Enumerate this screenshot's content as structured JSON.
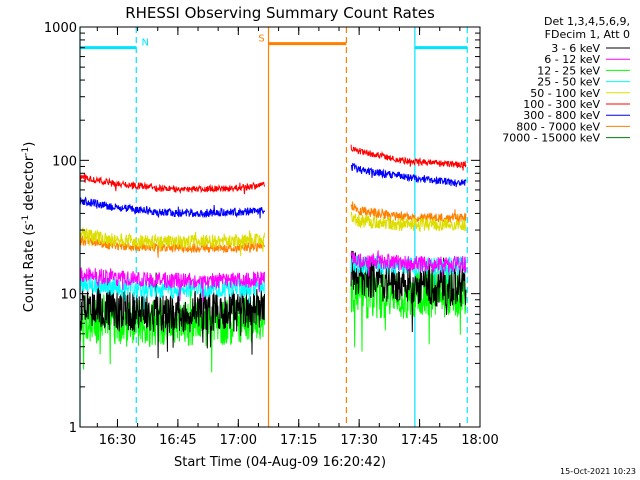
{
  "chart_data": {
    "type": "line",
    "title": "RHESSI Observing Summary Count Rates",
    "xlabel": "Start Time (04-Aug-09 16:20:42)",
    "ylabel_main": "Count Rate (s",
    "ylabel_sup1": "-1",
    "ylabel_mid": " detector",
    "ylabel_sup2": "-1",
    "ylabel_end": ")",
    "yscale": "log",
    "ylim": [
      1,
      1000
    ],
    "xlim": [
      "16:20:42",
      "18:00:00"
    ],
    "x_ticks": [
      "16:30",
      "16:45",
      "17:00",
      "17:15",
      "17:30",
      "17:45",
      "18:00"
    ],
    "y_ticks": [
      "1",
      "10",
      "100",
      "1000"
    ],
    "legend_header": [
      "Det 1,3,4,5,6,9,",
      "FDecim 1, Att 0"
    ],
    "timestamp": "15-Oct-2021 10:23",
    "flag_bars": [
      {
        "label": "N",
        "start": "16:20:42",
        "end": "16:34:40",
        "value": 700,
        "color": "#00e5ff"
      },
      {
        "label": "S",
        "start": "17:07:30",
        "end": "17:26:50",
        "value": 750,
        "color": "#ff8000"
      },
      {
        "label": "",
        "start": "17:43:50",
        "end": "17:56:50",
        "value": 700,
        "color": "#00e5ff"
      }
    ],
    "boundaries": [
      {
        "time": "16:20:42",
        "style": "solid",
        "color": "#00e5ff"
      },
      {
        "time": "16:34:40",
        "style": "dashed",
        "color": "#00e5ff"
      },
      {
        "time": "17:07:30",
        "style": "solid",
        "color": "#ff8000"
      },
      {
        "time": "17:26:50",
        "style": "dashed",
        "color": "#ff8000"
      },
      {
        "time": "17:43:50",
        "style": "solid",
        "color": "#00e5ff"
      },
      {
        "time": "17:56:50",
        "style": "dashed",
        "color": "#00e5ff"
      }
    ],
    "segments": [
      {
        "start": "16:20:42",
        "end": "17:06:30"
      },
      {
        "start": "17:28:00",
        "end": "17:56:30"
      }
    ],
    "series": [
      {
        "name": "3 - 6 keV",
        "color": "#000000",
        "noise": 0.16,
        "seg1": {
          "x": [
            "16:20:42",
            "16:30",
            "16:45",
            "17:00",
            "17:06:30"
          ],
          "y": [
            8.5,
            7.5,
            7.2,
            7.5,
            7.8
          ]
        },
        "seg2": {
          "x": [
            "17:28:00",
            "17:30",
            "17:40",
            "17:50",
            "17:56:30"
          ],
          "y": [
            15,
            13.5,
            12,
            11.5,
            11.5
          ]
        }
      },
      {
        "name": "6 - 12 keV",
        "color": "#ff00ff",
        "noise": 0.06,
        "seg1": {
          "x": [
            "16:20:42",
            "16:30",
            "16:45",
            "17:00",
            "17:06:30"
          ],
          "y": [
            14,
            13,
            12.5,
            12.5,
            13
          ]
        },
        "seg2": {
          "x": [
            "17:28:00",
            "17:30",
            "17:40",
            "17:50",
            "17:56:30"
          ],
          "y": [
            19,
            18,
            17,
            16.5,
            16.5
          ]
        }
      },
      {
        "name": "12 - 25 keV",
        "color": "#00ff00",
        "noise": 0.18,
        "seg1": {
          "x": [
            "16:20:42",
            "16:30",
            "16:45",
            "17:00",
            "17:06:30"
          ],
          "y": [
            6.5,
            6.2,
            6,
            6.2,
            6.5
          ]
        },
        "seg2": {
          "x": [
            "17:28:00",
            "17:30",
            "17:40",
            "17:50",
            "17:56:30"
          ],
          "y": [
            10,
            9.8,
            9.8,
            10,
            10.2
          ]
        }
      },
      {
        "name": "25 - 50 keV",
        "color": "#00ffff",
        "noise": 0.07,
        "seg1": {
          "x": [
            "16:20:42",
            "16:30",
            "16:45",
            "17:00",
            "17:06:30"
          ],
          "y": [
            12,
            11.2,
            10.8,
            11,
            11.5
          ]
        },
        "seg2": {
          "x": [
            "17:28:00",
            "17:30",
            "17:40",
            "17:50",
            "17:56:30"
          ],
          "y": [
            17,
            16.5,
            16,
            16,
            16.5
          ]
        }
      },
      {
        "name": "50 - 100 keV",
        "color": "#dddd00",
        "noise": 0.05,
        "seg1": {
          "x": [
            "16:20:42",
            "16:30",
            "16:45",
            "17:00",
            "17:06:30"
          ],
          "y": [
            28,
            25,
            24.5,
            25,
            26
          ]
        },
        "seg2": {
          "x": [
            "17:28:00",
            "17:30",
            "17:40",
            "17:50",
            "17:56:30"
          ],
          "y": [
            38,
            35,
            33,
            33,
            33
          ]
        }
      },
      {
        "name": "100 - 300 keV",
        "color": "#ff0000",
        "noise": 0.025,
        "seg1": {
          "x": [
            "16:20:42",
            "16:30",
            "16:45",
            "17:00",
            "17:06:30"
          ],
          "y": [
            75,
            67,
            60,
            62,
            66
          ]
        },
        "seg2": {
          "x": [
            "17:28:00",
            "17:30",
            "17:40",
            "17:50",
            "17:56:30"
          ],
          "y": [
            125,
            118,
            100,
            95,
            92
          ]
        }
      },
      {
        "name": "300 - 800 keV",
        "color": "#0000ff",
        "noise": 0.03,
        "seg1": {
          "x": [
            "16:20:42",
            "16:30",
            "16:45",
            "17:00",
            "17:06:30"
          ],
          "y": [
            50,
            44,
            40,
            41,
            42
          ]
        },
        "seg2": {
          "x": [
            "17:28:00",
            "17:30",
            "17:40",
            "17:50",
            "17:56:30"
          ],
          "y": [
            90,
            85,
            76,
            70,
            67
          ]
        }
      },
      {
        "name": "800 - 7000 keV",
        "color": "#ff8000",
        "noise": 0.035,
        "seg1": {
          "x": [
            "16:20:42",
            "16:30",
            "16:45",
            "17:00",
            "17:06:30"
          ],
          "y": [
            25,
            23,
            22,
            22,
            23
          ]
        },
        "seg2": {
          "x": [
            "17:28:00",
            "17:30",
            "17:40",
            "17:50",
            "17:56:30"
          ],
          "y": [
            47,
            42,
            38,
            37,
            37
          ]
        }
      },
      {
        "name": "7000 - 15000 keV",
        "color": "#008000",
        "noise": 0,
        "seg1": null,
        "seg2": null
      }
    ]
  }
}
